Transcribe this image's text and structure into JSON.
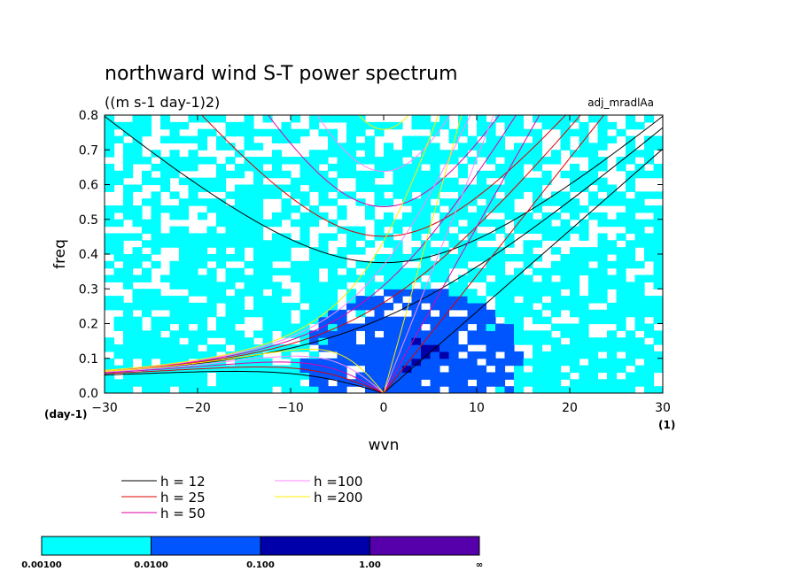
{
  "chart_data": {
    "type": "heatmap",
    "title": "northward wind S-T power spectrum",
    "subtitle": "((m s-1 day-1)2)",
    "tag": "adj_mradlAa",
    "xlabel": "wvn",
    "ylabel": "freq",
    "x_unit": "(1)",
    "y_unit": "(day-1)",
    "xlim": [
      -30,
      30
    ],
    "ylim": [
      0,
      0.8
    ],
    "x_ticks": [
      "−30",
      "−20",
      "−10",
      "0",
      "10",
      "20",
      "30"
    ],
    "y_ticks": [
      "0.0",
      "0.1",
      "0.2",
      "0.3",
      "0.4",
      "0.5",
      "0.6",
      "0.7",
      "0.8"
    ],
    "colorbar": {
      "labels": [
        "0.00100",
        "0.0100",
        "0.100",
        "1.00",
        "∞"
      ],
      "colors": [
        "#00ffff",
        "#0055ff",
        "#0000aa",
        "#5500aa"
      ]
    },
    "legend": [
      {
        "label": "h = 12",
        "color": "#000000",
        "h": 12
      },
      {
        "label": "h = 25",
        "color": "#dd0000",
        "h": 25
      },
      {
        "label": "h = 50",
        "color": "#dd00aa",
        "h": 50
      },
      {
        "label": "h =100",
        "color": "#ff88ff",
        "h": 100
      },
      {
        "label": "h =200",
        "color": "#ffee00",
        "h": 200
      }
    ],
    "series": [
      {
        "name": "h = 12",
        "color": "#000000",
        "eq_depth_m": 12
      },
      {
        "name": "h = 25",
        "color": "#dd0000",
        "eq_depth_m": 25
      },
      {
        "name": "h = 50",
        "color": "#dd00aa",
        "eq_depth_m": 50
      },
      {
        "name": "h =100",
        "color": "#ff88ff",
        "eq_depth_m": 100
      },
      {
        "name": "h =200",
        "color": "#ffee00",
        "eq_depth_m": 200
      }
    ]
  }
}
